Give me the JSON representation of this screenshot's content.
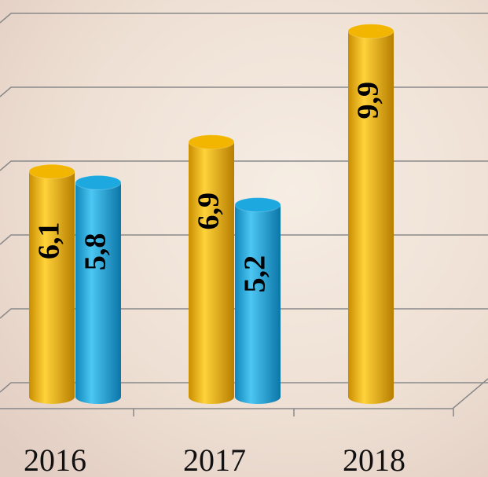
{
  "chart_data": {
    "type": "bar",
    "categories": [
      "2016",
      "2017",
      "2018"
    ],
    "series": [
      {
        "color": "#f2b500",
        "values": [
          6.1,
          6.9,
          9.9
        ],
        "value_labels": [
          "6,1",
          "6,9",
          "9,9"
        ]
      },
      {
        "color": "#1ea8e0",
        "values": [
          5.8,
          5.2,
          null
        ],
        "value_labels": [
          "5,8",
          "5,2",
          null
        ]
      }
    ],
    "ylim": [
      0,
      10
    ],
    "yticks": [
      0,
      2,
      4,
      6,
      8,
      10
    ],
    "grid": true
  }
}
